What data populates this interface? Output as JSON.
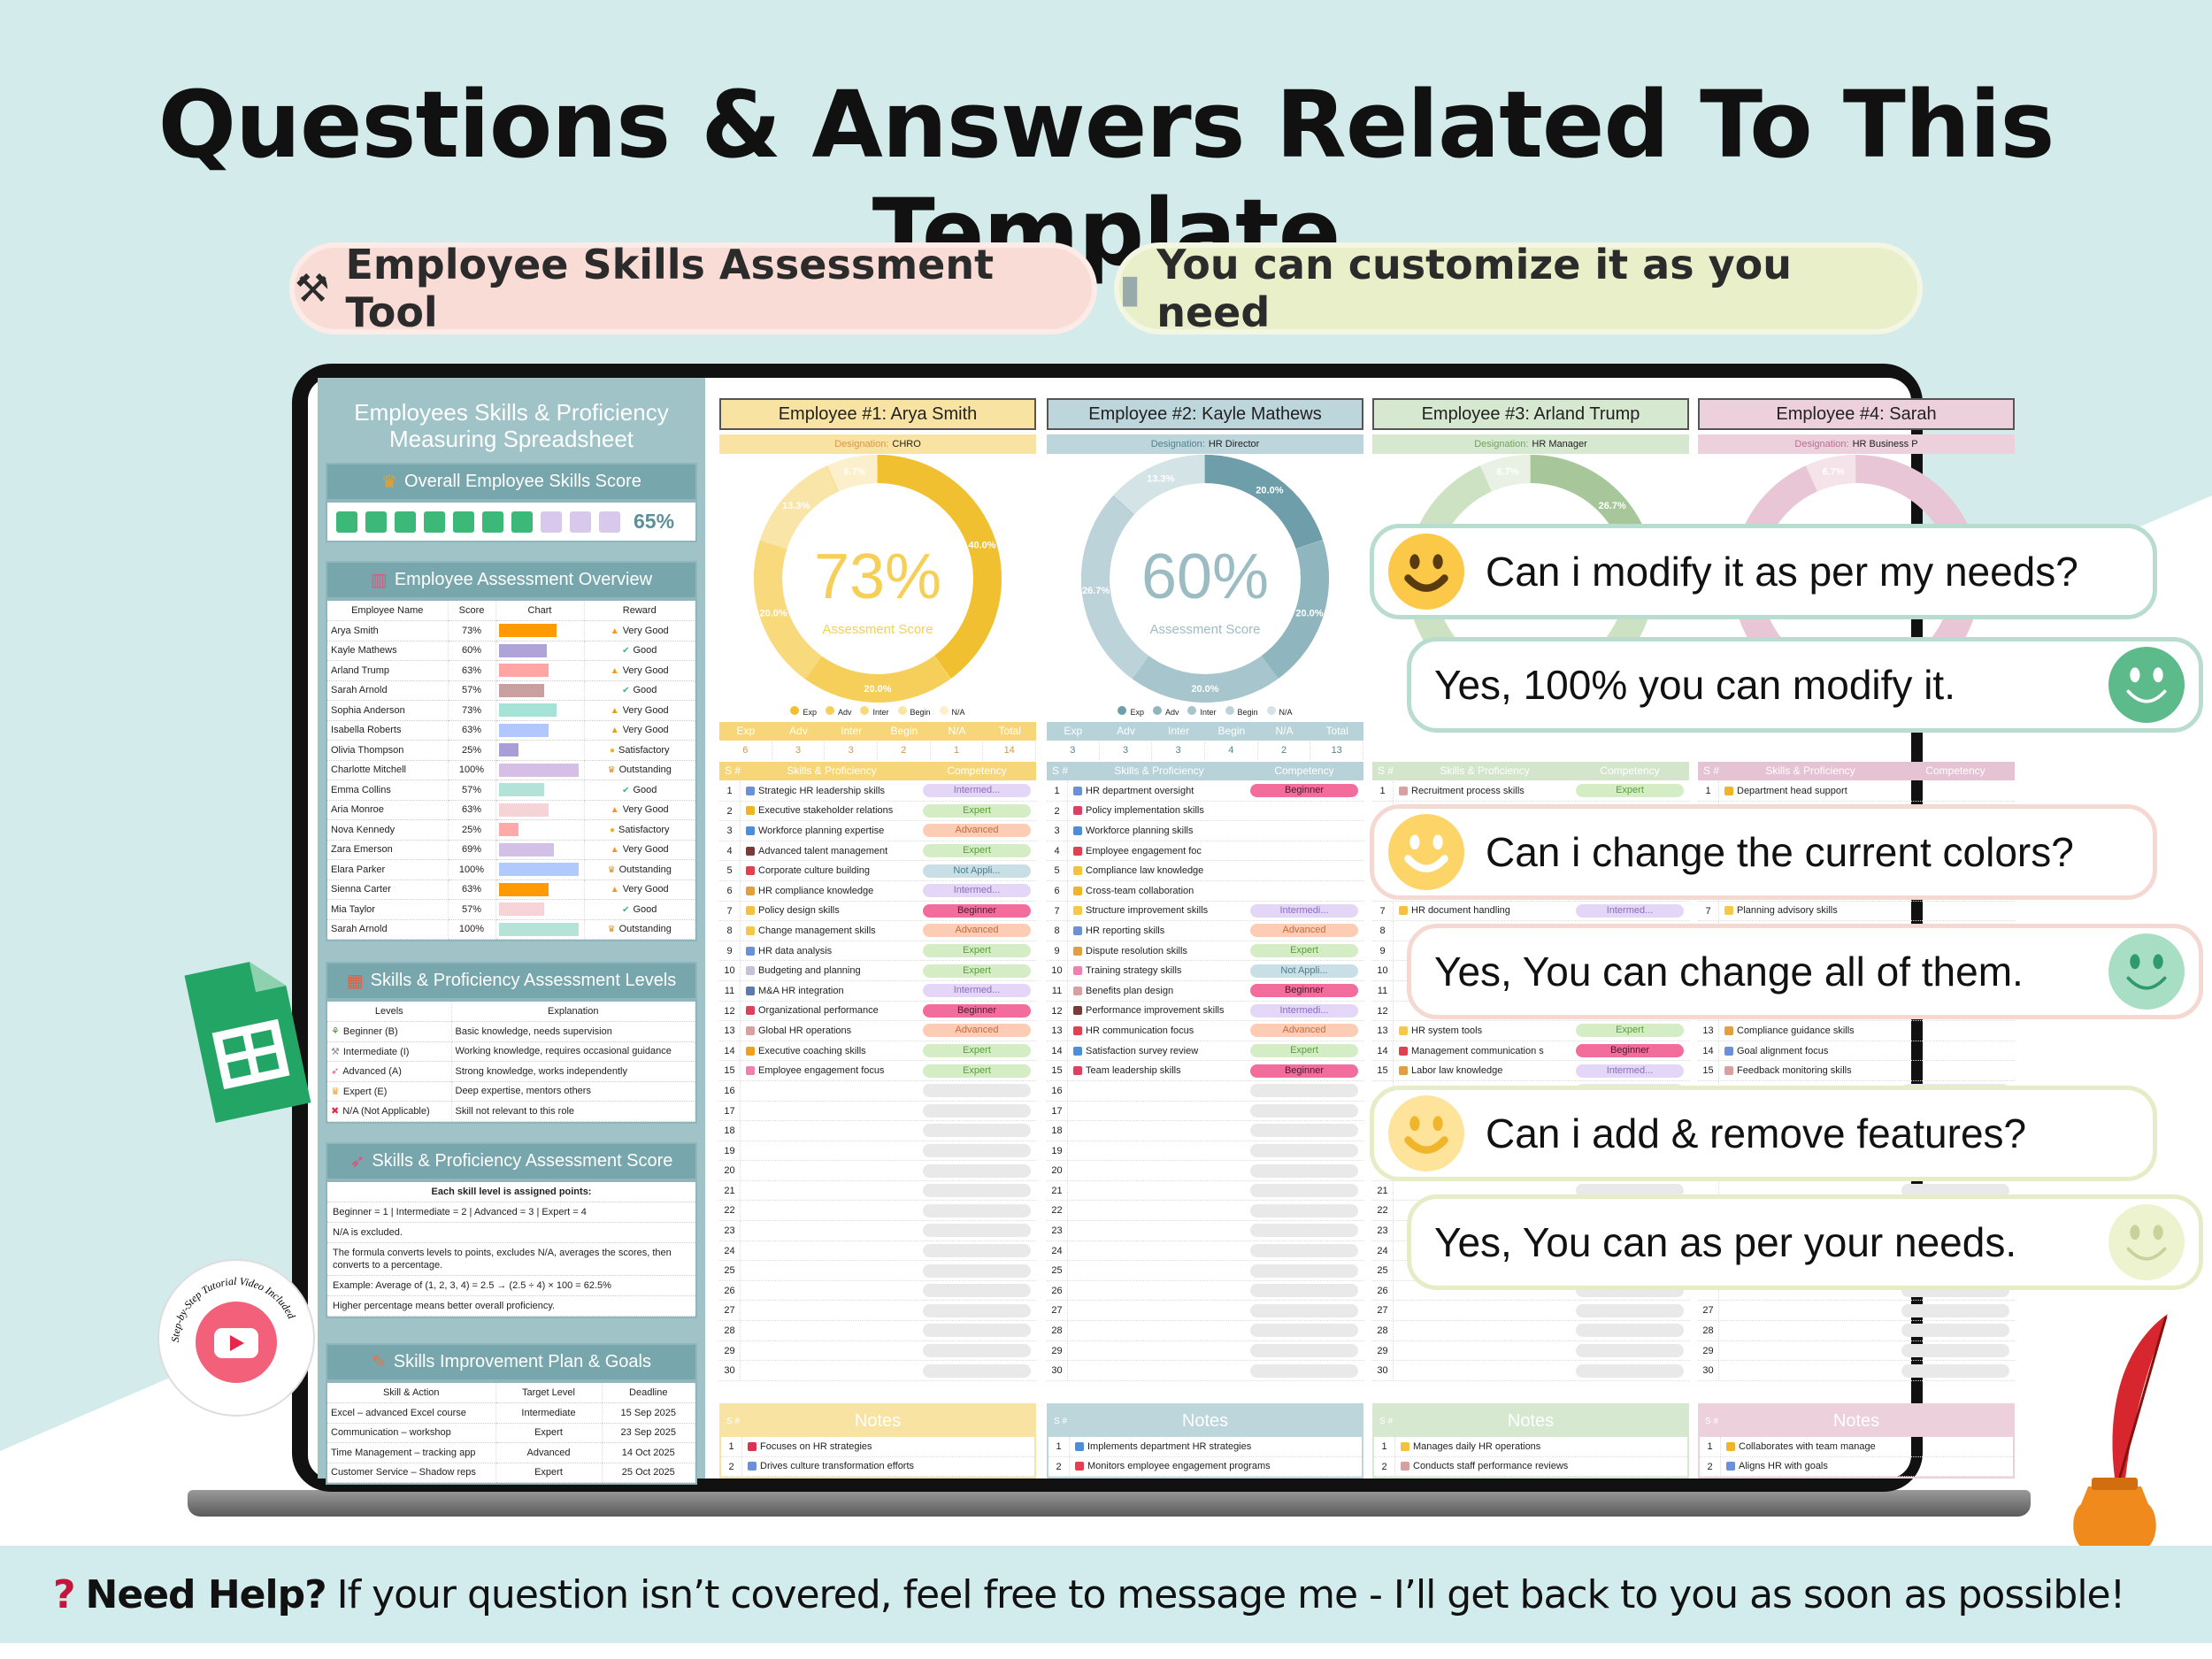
{
  "page_title": "Questions & Answers Related To This Template",
  "pills": [
    {
      "icon": "tools-icon",
      "label": "Employee Skills Assessment Tool"
    },
    {
      "icon": "salt-shaker-icon",
      "label": "You can customize it as you need"
    }
  ],
  "left": {
    "title_line1": "Employees Skills & Proficiency",
    "title_line2": "Measuring Spreadsheet",
    "overall": {
      "header": "Overall Employee Skills Score",
      "score": "65%",
      "progress_percent": 65,
      "filled_color": "#3cb878",
      "empty_color": "#d8c8ec"
    },
    "overview": {
      "header": "Employee Assessment Overview",
      "columns": [
        "Employee Name",
        "Score",
        "Chart",
        "Reward"
      ],
      "rows": [
        {
          "name": "Arya Smith",
          "score": "73%",
          "value": 73,
          "color": "#ff9a05",
          "reward": "Very Good"
        },
        {
          "name": "Kayle Mathews",
          "score": "60%",
          "value": 60,
          "color": "#b0a3d8",
          "reward": "Good"
        },
        {
          "name": "Arland Trump",
          "score": "63%",
          "value": 63,
          "color": "#ffa5a3",
          "reward": "Very Good"
        },
        {
          "name": "Sarah Arnold",
          "score": "57%",
          "value": 57,
          "color": "#c9a0a0",
          "reward": "Good"
        },
        {
          "name": "Sophia Anderson",
          "score": "73%",
          "value": 73,
          "color": "#a5e3d6",
          "reward": "Very Good"
        },
        {
          "name": "Isabella Roberts",
          "score": "63%",
          "value": 63,
          "color": "#b0c8ff",
          "reward": "Very Good"
        },
        {
          "name": "Olivia Thompson",
          "score": "25%",
          "value": 25,
          "color": "#a99fd6",
          "reward": "Satisfactory"
        },
        {
          "name": "Charlotte Mitchell",
          "score": "100%",
          "value": 100,
          "color": "#d5bfe6",
          "reward": "Outstanding"
        },
        {
          "name": "Emma Collins",
          "score": "57%",
          "value": 57,
          "color": "#b3e3d8",
          "reward": "Good"
        },
        {
          "name": "Aria Monroe",
          "score": "63%",
          "value": 63,
          "color": "#f5d3d7",
          "reward": "Very Good"
        },
        {
          "name": "Nova Kennedy",
          "score": "25%",
          "value": 25,
          "color": "#ffaaa8",
          "reward": "Satisfactory"
        },
        {
          "name": "Zara Emerson",
          "score": "69%",
          "value": 69,
          "color": "#d3c0e6",
          "reward": "Very Good"
        },
        {
          "name": "Elara Parker",
          "score": "100%",
          "value": 100,
          "color": "#b0c9ff",
          "reward": "Outstanding"
        },
        {
          "name": "Sienna Carter",
          "score": "63%",
          "value": 63,
          "color": "#ff9a05",
          "reward": "Very Good"
        },
        {
          "name": "Mia Taylor",
          "score": "57%",
          "value": 57,
          "color": "#f5d3d7",
          "reward": "Good"
        },
        {
          "name": "Sarah Arnold",
          "score": "100%",
          "value": 100,
          "color": "#b6e3d8",
          "reward": "Outstanding"
        }
      ]
    },
    "levels": {
      "header": "Skills & Proficiency Assessment Levels",
      "columns": [
        "Levels",
        "Explanation"
      ],
      "rows": [
        {
          "level": "Beginner (B)",
          "explanation": "Basic knowledge, needs supervision",
          "icon": "seedling-icon"
        },
        {
          "level": "Intermediate (I)",
          "explanation": "Working knowledge, requires occasional guidance",
          "icon": "tools-icon"
        },
        {
          "level": "Advanced (A)",
          "explanation": "Strong knowledge, works independently",
          "icon": "rocket-icon"
        },
        {
          "level": "Expert (E)",
          "explanation": "Deep expertise, mentors others",
          "icon": "crown-icon"
        },
        {
          "level": "N/A (Not Applicable)",
          "explanation": "Skill not relevant to this role",
          "icon": "cross-icon"
        }
      ]
    },
    "score_info": {
      "header": "Skills & Proficiency Assessment Score",
      "lines": [
        "Each skill level is assigned points:",
        "Beginner = 1 | Intermediate = 2 | Advanced = 3 | Expert = 4",
        "N/A is excluded.",
        "The formula converts levels to points, excludes N/A, averages the scores, then converts to a percentage.",
        "Example: Average of (1, 2, 3, 4) = 2.5 → (2.5 ÷ 4) × 100 = 62.5%",
        "Higher percentage means better overall proficiency."
      ]
    },
    "plan": {
      "header": "Skills Improvement Plan & Goals",
      "columns": [
        "Skill & Action",
        "Target Level",
        "Deadline"
      ],
      "rows": [
        {
          "skill": "Excel – advanced Excel course",
          "target": "Intermediate",
          "deadline": "15 Sep 2025"
        },
        {
          "skill": "Communication – workshop",
          "target": "Expert",
          "deadline": "23 Sep 2025"
        },
        {
          "skill": "Time Management – tracking app",
          "target": "Advanced",
          "deadline": "14 Oct 2025"
        },
        {
          "skill": "Customer Service – Shadow reps",
          "target": "Expert",
          "deadline": "25 Oct 2025"
        }
      ]
    }
  },
  "employee_labels": {
    "designation": "Designation:",
    "score_caption": "Assessment Score",
    "legend": [
      "Exp",
      "Adv",
      "Inter",
      "Begin",
      "N/A"
    ],
    "count_headers": [
      "Exp",
      "Adv",
      "Inter",
      "Begin",
      "N/A",
      "Total"
    ],
    "sub_headers": [
      "S #",
      "Skills & Proficiency",
      "Competency"
    ],
    "notes_header": "Notes",
    "notes_sn": "S #"
  },
  "competency_colors": {
    "Intermediate": [
      "#e4d6f6",
      "#8b6cc0"
    ],
    "Expert": [
      "#d5edc5",
      "#5a9d3d"
    ],
    "Advanced": [
      "#fccdb4",
      "#d0683a"
    ],
    "NA": [
      "#c9dfe6",
      "#4c7e90"
    ],
    "Beginner": [
      "#f26d9c",
      "#4a1a2a"
    ]
  },
  "employees": [
    {
      "heading": "Employee #1: Arya Smith",
      "designation": "CHRO",
      "score": "73%",
      "theme": {
        "head": "#f9e3a3",
        "sub": "#f7d67a",
        "text": "#d9954a",
        "shades": [
          "#f0c030",
          "#f5cf5a",
          "#f8da7c",
          "#fae5a8",
          "#fcefcb"
        ],
        "score": "#f6cf58"
      },
      "slices": [
        {
          "label": "40.0%",
          "pct": 40
        },
        {
          "label": "20.0%",
          "pct": 20
        },
        {
          "label": "20.0%",
          "pct": 20
        },
        {
          "label": "13.3%",
          "pct": 13.3
        },
        {
          "label": "6.7%",
          "pct": 6.7
        }
      ],
      "counts": [
        "6",
        "3",
        "3",
        "2",
        "1",
        "14"
      ],
      "skills": [
        {
          "icon": "chart-up-icon",
          "name": "Strategic HR leadership skills",
          "level": "Intermediate",
          "label": "Intermed..."
        },
        {
          "icon": "handshake-icon",
          "name": "Executive stakeholder relations",
          "level": "Expert",
          "label": "Expert"
        },
        {
          "icon": "bar-chart-icon",
          "name": "Workforce planning expertise",
          "level": "Advanced",
          "label": "Advanced"
        },
        {
          "icon": "briefcase-icon",
          "name": "Advanced talent management",
          "level": "Expert",
          "label": "Expert"
        },
        {
          "icon": "megaphone-icon",
          "name": "Corporate culture building",
          "level": "NA",
          "label": "Not Appli..."
        },
        {
          "icon": "scales-icon",
          "name": "HR compliance knowledge",
          "level": "Intermediate",
          "label": "Intermed..."
        },
        {
          "icon": "folder-icon",
          "name": "Policy design skills",
          "level": "Beginner",
          "label": "Beginner"
        },
        {
          "icon": "bulb-icon",
          "name": "Change management skills",
          "level": "Advanced",
          "label": "Advanced"
        },
        {
          "icon": "chart-up-icon",
          "name": "HR data analysis",
          "level": "Expert",
          "label": "Expert"
        },
        {
          "icon": "memo-icon",
          "name": "Budgeting and planning",
          "level": "Expert",
          "label": "Expert"
        },
        {
          "icon": "tablet-icon",
          "name": "M&A HR integration",
          "level": "Intermediate",
          "label": "Intermed..."
        },
        {
          "icon": "target-icon",
          "name": "Organizational performance",
          "level": "Beginner",
          "label": "Beginner"
        },
        {
          "icon": "clipboard-icon",
          "name": "Global HR operations",
          "level": "Advanced",
          "label": "Advanced"
        },
        {
          "icon": "key-icon",
          "name": "Executive coaching skills",
          "level": "Expert",
          "label": "Expert"
        },
        {
          "icon": "brain-icon",
          "name": "Employee engagement focus",
          "level": "Expert",
          "label": "Expert"
        }
      ],
      "notes": [
        {
          "icon": "pin-icon",
          "text": "Focuses on HR strategies"
        },
        {
          "icon": "chart-up-icon",
          "text": "Drives culture transformation efforts"
        }
      ]
    },
    {
      "heading": "Employee #2: Kayle Mathews",
      "designation": "HR Director",
      "score": "60%",
      "theme": {
        "head": "#bcd6db",
        "sub": "#b7d2d8",
        "text": "#4f8590",
        "shades": [
          "#6e9ea9",
          "#8fb5be",
          "#a6c5cc",
          "#bcd4d9",
          "#d3e3e6"
        ],
        "score": "#9cbcc4"
      },
      "slices": [
        {
          "label": "20.0%",
          "pct": 20
        },
        {
          "label": "20.0%",
          "pct": 20
        },
        {
          "label": "20.0%",
          "pct": 20
        },
        {
          "label": "26.7%",
          "pct": 26.7
        },
        {
          "label": "13.3%",
          "pct": 13.3
        }
      ],
      "counts": [
        "3",
        "3",
        "3",
        "4",
        "2",
        "13"
      ],
      "skills": [
        {
          "icon": "chart-up-icon",
          "name": "HR department oversight",
          "level": "Beginner",
          "label": "Beginner"
        },
        {
          "icon": "target-icon",
          "name": "Policy implementation skills",
          "level": "",
          "label": ""
        },
        {
          "icon": "bar-chart-icon",
          "name": "Workforce planning skills",
          "level": "",
          "label": ""
        },
        {
          "icon": "megaphone-icon",
          "name": "Employee engagement foc",
          "level": "",
          "label": ""
        },
        {
          "icon": "folder-icon",
          "name": "Compliance law knowledge",
          "level": "",
          "label": ""
        },
        {
          "icon": "handshake-icon",
          "name": "Cross-team collaboration",
          "level": "",
          "label": ""
        },
        {
          "icon": "bulb-icon",
          "name": "Structure improvement skills",
          "level": "Intermediate",
          "label": "Intermedi..."
        },
        {
          "icon": "chart-up-icon",
          "name": "HR reporting skills",
          "level": "Advanced",
          "label": "Advanced"
        },
        {
          "icon": "scales-icon",
          "name": "Dispute resolution skills",
          "level": "Expert",
          "label": "Expert"
        },
        {
          "icon": "brain-icon",
          "name": "Training strategy skills",
          "level": "NA",
          "label": "Not Appli..."
        },
        {
          "icon": "clipboard-icon",
          "name": "Benefits plan design",
          "level": "Beginner",
          "label": "Beginner"
        },
        {
          "icon": "briefcase-icon",
          "name": "Performance improvement skills",
          "level": "Intermediate",
          "label": "Intermedi..."
        },
        {
          "icon": "megaphone-icon",
          "name": "HR communication focus",
          "level": "Advanced",
          "label": "Advanced"
        },
        {
          "icon": "bar-chart-icon",
          "name": "Satisfaction survey review",
          "level": "Expert",
          "label": "Expert"
        },
        {
          "icon": "target-icon",
          "name": "Team leadership skills",
          "level": "Beginner",
          "label": "Beginner"
        }
      ],
      "notes": [
        {
          "icon": "bar-chart-icon",
          "text": "Implements department HR strategies"
        },
        {
          "icon": "megaphone-icon",
          "text": "Monitors employee engagement programs"
        }
      ]
    },
    {
      "heading": "Employee #3: Arland Trump",
      "designation": "HR Manager",
      "score": "",
      "theme": {
        "head": "#d6e8cf",
        "sub": "#d3e6cc",
        "text": "#6fa35c",
        "shades": [
          "#a7c79a",
          "#bcd6b0",
          "#cde2c3",
          "#d9e9d2",
          "#e8f1e3"
        ],
        "score": "#bcd6b0"
      },
      "slices": [
        {
          "label": "26.7%",
          "pct": 26.7,
          "pos": "first"
        },
        {
          "label": "6.7%",
          "pct": 6.7,
          "pos": "last"
        }
      ],
      "counts": [],
      "skills": [
        {
          "icon": "clipboard-icon",
          "name": "Recruitment process skills",
          "level": "Expert",
          "label": "Expert"
        },
        {},
        {},
        {},
        {},
        {},
        {
          "icon": "folder-icon",
          "name": "HR document handling",
          "level": "Intermediate",
          "label": "Intermed..."
        },
        {},
        {},
        {},
        {},
        {},
        {
          "icon": "bulb-icon",
          "name": "HR system tools",
          "level": "Expert",
          "label": "Expert"
        },
        {
          "icon": "megaphone-icon",
          "name": "Management communication s",
          "level": "Beginner",
          "label": "Beginner"
        },
        {
          "icon": "scales-icon",
          "name": "Labor law knowledge",
          "level": "Intermediate",
          "label": "Intermed..."
        }
      ],
      "notes": [
        {
          "icon": "folder-icon",
          "text": "Manages daily HR operations"
        },
        {
          "icon": "clipboard-icon",
          "text": "Conducts staff performance reviews"
        }
      ]
    },
    {
      "heading": "Employee #4: Sarah",
      "designation": "HR Business P",
      "score": "",
      "theme": {
        "head": "#ecd0dc",
        "sub": "#e6c3d2",
        "text": "#c06b93",
        "shades": [
          "#d39ab6",
          "#e0b3c8",
          "#e8c6d5",
          "#efd5e0",
          "#f5e3ea"
        ],
        "score": "#e0b3c8"
      },
      "slices": [
        {
          "label": "6.7%",
          "pct": 6.7,
          "pos": "last"
        }
      ],
      "counts": [],
      "skills": [
        {
          "icon": "handshake-icon",
          "name": "Department head support"
        },
        {},
        {},
        {},
        {},
        {},
        {
          "icon": "bulb-icon",
          "name": "Planning advisory skills"
        },
        {},
        {},
        {},
        {},
        {},
        {
          "icon": "scales-icon",
          "name": "Compliance guidance skills"
        },
        {
          "icon": "chart-up-icon",
          "name": "Goal alignment focus"
        },
        {
          "icon": "clipboard-icon",
          "name": "Feedback monitoring skills"
        }
      ],
      "notes": [
        {
          "icon": "handshake-icon",
          "text": "Collaborates with team manage"
        },
        {
          "icon": "chart-up-icon",
          "text": "Aligns HR with goals"
        }
      ]
    }
  ],
  "qa": [
    {
      "kind": "question",
      "text": "Can i modify it as per my needs?",
      "face": "#fcc847",
      "feature": "#5a3b10",
      "border": "#b8dccd"
    },
    {
      "kind": "answer",
      "text": "Yes, 100% you can modify it.",
      "face": "#5cba8b",
      "feature": "#ffffff",
      "border": "#b8dccd"
    },
    {
      "kind": "question",
      "text": "Can i change the current colors?",
      "face": "#fdd468",
      "feature": "#ffffff",
      "border": "#f6d8d2"
    },
    {
      "kind": "answer",
      "text": "Yes, You can change all of them.",
      "face": "#a8dfc4",
      "feature": "#2f9a6c",
      "border": "#f6d8d2"
    },
    {
      "kind": "question",
      "text": "Can i add & remove features?",
      "face": "#fde49a",
      "feature": "#f0b52b",
      "border": "#e4edc6"
    },
    {
      "kind": "answer",
      "text": "Yes, You can as per your needs.",
      "face": "#eef3cf",
      "feature": "#c9d29a",
      "border": "#e4edc6"
    }
  ],
  "badge": {
    "text": "Step-by-Step Tutorial Video Included"
  },
  "footer": {
    "bold": "Need Help?",
    "text": "If your question isn’t covered, feel free to message me - I’ll get back to you as soon as possible!"
  }
}
